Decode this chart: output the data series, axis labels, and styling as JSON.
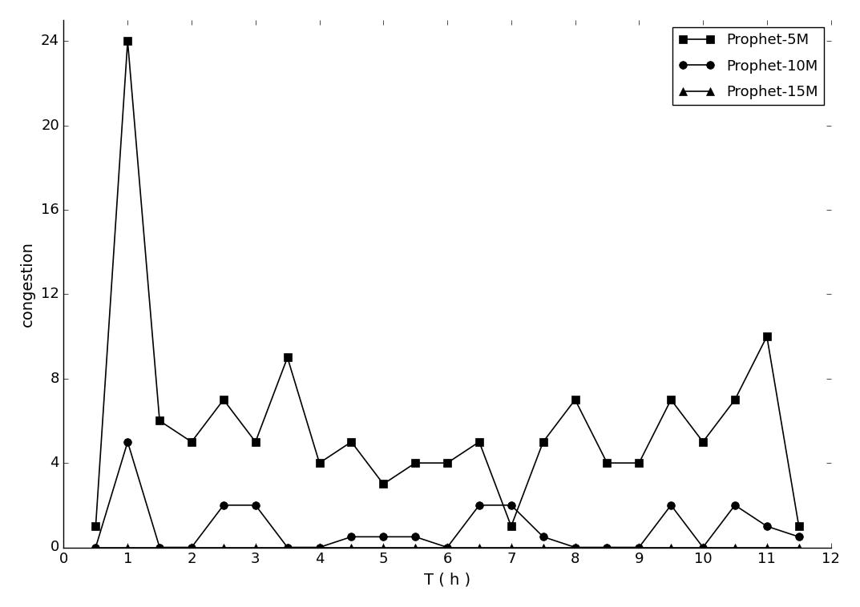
{
  "prophet_5m_x": [
    0.5,
    1.0,
    1.5,
    2.0,
    2.5,
    3.0,
    3.5,
    4.0,
    4.5,
    5.0,
    5.5,
    6.0,
    6.5,
    7.0,
    7.5,
    8.0,
    8.5,
    9.0,
    9.5,
    10.0,
    10.5,
    11.0,
    11.5
  ],
  "prophet_5m_y": [
    1,
    24,
    6,
    5,
    7,
    5,
    9,
    4,
    5,
    3,
    4,
    4,
    5,
    1,
    5,
    7,
    4,
    4,
    7,
    5,
    7,
    10,
    1
  ],
  "prophet_10m_x": [
    0.5,
    1.0,
    1.5,
    2.0,
    2.5,
    3.0,
    3.5,
    4.0,
    4.5,
    5.0,
    5.5,
    6.0,
    6.5,
    7.0,
    7.5,
    8.0,
    8.5,
    9.0,
    9.5,
    10.0,
    10.5,
    11.0,
    11.5
  ],
  "prophet_10m_y": [
    0,
    5,
    0,
    0,
    2,
    2,
    0,
    0,
    0.5,
    0.5,
    0.5,
    0,
    2,
    2,
    0.5,
    0,
    0,
    0,
    2,
    0,
    2,
    1,
    0.5
  ],
  "prophet_15m_x": [
    0.5,
    1.0,
    1.5,
    2.0,
    2.5,
    3.0,
    3.5,
    4.0,
    4.5,
    5.0,
    5.5,
    6.0,
    6.5,
    7.0,
    7.5,
    8.0,
    8.5,
    9.0,
    9.5,
    10.0,
    10.5,
    11.0,
    11.5
  ],
  "prophet_15m_y": [
    0,
    0,
    0,
    0,
    0,
    0,
    0,
    0,
    0,
    0,
    0,
    0,
    0,
    0,
    0,
    0,
    0,
    0,
    0,
    0,
    0,
    0,
    0
  ],
  "xlabel": "T ( h )",
  "ylabel": "congestion",
  "xlim": [
    0,
    12
  ],
  "ylim": [
    0,
    25
  ],
  "yticks": [
    0,
    4,
    8,
    12,
    16,
    20,
    24
  ],
  "xticks": [
    0,
    1,
    2,
    3,
    4,
    5,
    6,
    7,
    8,
    9,
    10,
    11,
    12
  ],
  "legend_labels": [
    "Prophet-5M",
    "Prophet-10M",
    "Prophet-15M"
  ],
  "line_color": "#000000",
  "marker_5m": "s",
  "marker_10m": "o",
  "marker_15m": "^",
  "markersize": 7,
  "linewidth": 1.2,
  "bg_color": "#ffffff",
  "xlabel_fontsize": 14,
  "ylabel_fontsize": 14,
  "tick_fontsize": 13,
  "legend_fontsize": 13
}
